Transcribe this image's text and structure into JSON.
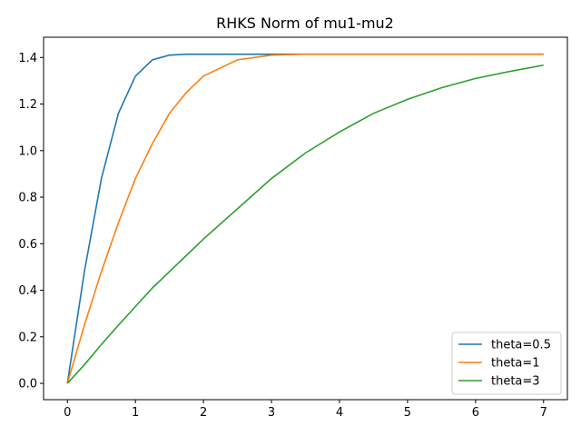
{
  "chart_data": {
    "type": "line",
    "title": "RHKS Norm of mu1-mu2",
    "xlabel": "",
    "ylabel": "",
    "xlim": [
      -0.35,
      7.35
    ],
    "ylim": [
      -0.07,
      1.487
    ],
    "xticks": [
      0,
      1,
      2,
      3,
      4,
      5,
      6,
      7
    ],
    "xtick_labels": [
      "0",
      "1",
      "2",
      "3",
      "4",
      "5",
      "6",
      "7"
    ],
    "yticks": [
      0.0,
      0.2,
      0.4,
      0.6,
      0.8,
      1.0,
      1.2,
      1.4
    ],
    "ytick_labels": [
      "0.0",
      "0.2",
      "0.4",
      "0.6",
      "0.8",
      "1.0",
      "1.2",
      "1.4"
    ],
    "grid": false,
    "legend_position": "lower right",
    "x": [
      0,
      0.25,
      0.5,
      0.75,
      1,
      1.25,
      1.5,
      1.75,
      2,
      2.5,
      3,
      3.5,
      4,
      4.5,
      5,
      5.5,
      6,
      6.5,
      7
    ],
    "series": [
      {
        "name": "theta=0.5",
        "color": "#1f77b4",
        "values": [
          0.0,
          0.48,
          0.88,
          1.16,
          1.32,
          1.39,
          1.41,
          1.414,
          1.414,
          1.414,
          1.414,
          1.414,
          1.414,
          1.414,
          1.414,
          1.414,
          1.414,
          1.414,
          1.414
        ]
      },
      {
        "name": "theta=1",
        "color": "#ff7f0e",
        "values": [
          0.0,
          0.25,
          0.48,
          0.69,
          0.88,
          1.03,
          1.16,
          1.25,
          1.32,
          1.39,
          1.41,
          1.414,
          1.414,
          1.414,
          1.414,
          1.414,
          1.414,
          1.414,
          1.414
        ]
      },
      {
        "name": "theta=3",
        "color": "#2ca02c",
        "values": [
          0.0,
          0.08,
          0.167,
          0.25,
          0.33,
          0.41,
          0.48,
          0.55,
          0.62,
          0.75,
          0.88,
          0.99,
          1.08,
          1.16,
          1.22,
          1.27,
          1.31,
          1.34,
          1.367
        ]
      }
    ]
  }
}
